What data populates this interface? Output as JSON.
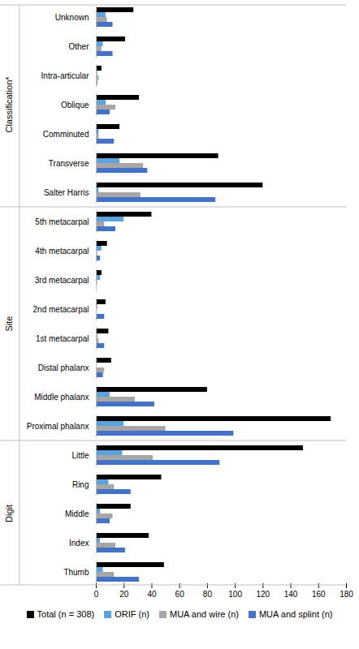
{
  "chart_data": {
    "type": "bar",
    "orientation": "horizontal",
    "categories": [
      "Unknown",
      "Other",
      "Intra-articular",
      "Oblique",
      "Comminuted",
      "Transverse",
      "Salter Harris",
      "5th metacarpal",
      "4th metacarpal",
      "3rd metacarpal",
      "2nd metacarpal",
      "1st metacarpal",
      "Distal phalanx",
      "Middle phalanx",
      "Proximal phalanx",
      "Little",
      "Ring",
      "Middle",
      "Index",
      "Thumb"
    ],
    "groups": [
      {
        "label": "Classification*",
        "first": "Unknown",
        "last": "Salter Harris"
      },
      {
        "label": "Site",
        "first": "5th metacarpal",
        "last": "Proximal phalanx"
      },
      {
        "label": "Digit",
        "first": "Little",
        "last": "Thumb"
      }
    ],
    "series": [
      {
        "name": "Total (n = 308)",
        "color": "#000000",
        "values": [
          27,
          21,
          4,
          31,
          17,
          88,
          120,
          40,
          8,
          4,
          7,
          9,
          11,
          80,
          169,
          149,
          47,
          25,
          38,
          49
        ]
      },
      {
        "name": "ORIF (n)",
        "color": "#5ba3dc",
        "values": [
          7,
          5,
          1,
          7,
          2,
          17,
          2,
          20,
          4,
          3,
          1,
          1,
          0,
          10,
          20,
          19,
          9,
          3,
          3,
          5
        ]
      },
      {
        "name": "MUA and wire (n)",
        "color": "#a6a6a6",
        "values": [
          8,
          4,
          2,
          14,
          2,
          34,
          32,
          6,
          1,
          1,
          0,
          2,
          6,
          28,
          50,
          41,
          13,
          12,
          14,
          13
        ]
      },
      {
        "name": "MUA and splint (n)",
        "color": "#4472c4",
        "values": [
          12,
          12,
          1,
          10,
          13,
          37,
          86,
          14,
          3,
          0,
          6,
          6,
          5,
          42,
          99,
          89,
          25,
          10,
          21,
          31
        ]
      }
    ],
    "xlim": [
      0,
      180
    ],
    "xticks": [
      0,
      20,
      40,
      60,
      80,
      100,
      120,
      140,
      160,
      180
    ],
    "grid": false,
    "legend": "bottom"
  }
}
